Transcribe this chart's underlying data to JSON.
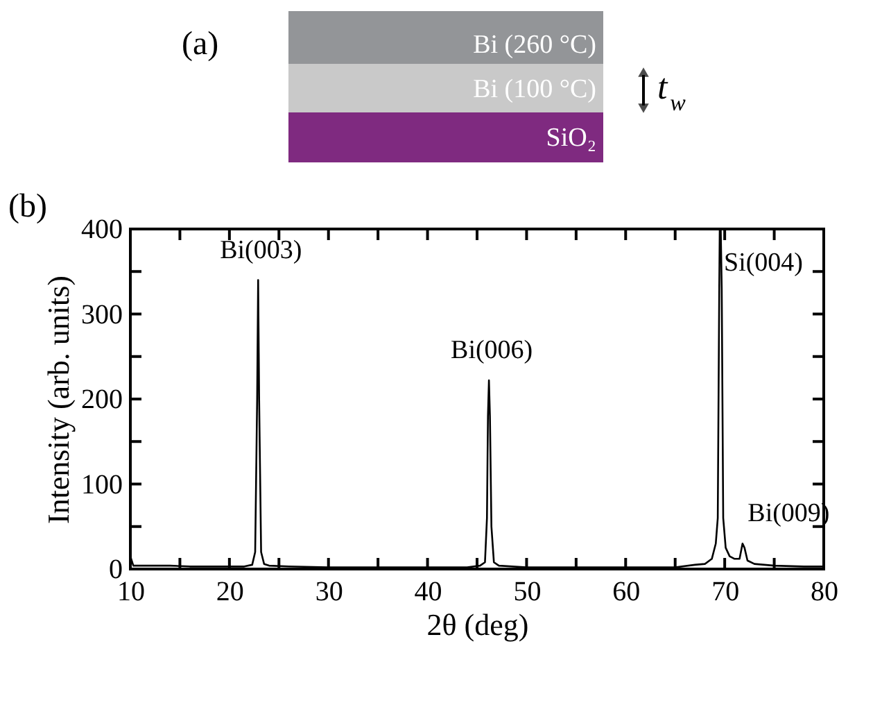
{
  "chart_data": {
    "type": "line",
    "xlabel": "2θ (deg)",
    "ylabel": "Intensity (arb. units)",
    "x": [
      10,
      10.3,
      12,
      14,
      16,
      18,
      20,
      21.5,
      22.3,
      22.6,
      22.8,
      22.9,
      23.0,
      23.2,
      23.5,
      24,
      26,
      30,
      35,
      40,
      44,
      45.3,
      45.8,
      46.0,
      46.1,
      46.2,
      46.3,
      46.45,
      46.7,
      47.2,
      50,
      55,
      60,
      65,
      67,
      68,
      68.7,
      69.1,
      69.3,
      69.45,
      69.5,
      69.6,
      69.7,
      69.85,
      70.1,
      70.5,
      71,
      71.5,
      71.8,
      72.0,
      72.3,
      73,
      75,
      78,
      80
    ],
    "series": [
      {
        "color": "#000000",
        "values": [
          15,
          4,
          4,
          4,
          3,
          3,
          3,
          3,
          5,
          20,
          200,
          340,
          200,
          20,
          6,
          4,
          3,
          2,
          2,
          2,
          2,
          4,
          8,
          60,
          180,
          222,
          180,
          50,
          8,
          4,
          2,
          2,
          2,
          2,
          5,
          6,
          12,
          30,
          60,
          330,
          400,
          400,
          330,
          60,
          25,
          15,
          12,
          12,
          30,
          25,
          10,
          6,
          4,
          3,
          3
        ]
      }
    ],
    "xlim": [
      10,
      80
    ],
    "ylim": [
      0,
      400
    ],
    "xticks": [
      10,
      {
        "value": 15,
        "label": null
      },
      20,
      {
        "value": 25,
        "label": null
      },
      30,
      {
        "value": 35,
        "label": null
      },
      40,
      {
        "value": 45,
        "label": null
      },
      50,
      {
        "value": 55,
        "label": null
      },
      60,
      {
        "value": 65,
        "label": null
      },
      70,
      {
        "value": 75,
        "label": null
      },
      80
    ],
    "yticks": [
      0,
      {
        "value": 50,
        "label": null
      },
      100,
      {
        "value": 150,
        "label": null
      },
      200,
      {
        "value": 250,
        "label": null
      },
      300,
      {
        "value": 350,
        "label": null
      },
      400
    ],
    "grid": false,
    "marker": "none",
    "line_style": "solid",
    "annotations": [
      "(a)",
      "Bi (260 °C)",
      "Bi (100 °C)",
      "SiO₂",
      "t$_{w}$",
      "(b)",
      {
        "text": "Bi(003)",
        "x": 22.9,
        "y": 340
      },
      {
        "text": "Bi(006)",
        "x": 46.2,
        "y": 222
      },
      {
        "text": "Si(004)",
        "x": 69.5,
        "y": 400
      },
      {
        "text": "Bi(009)",
        "x": 71.9,
        "y": 30
      }
    ]
  }
}
